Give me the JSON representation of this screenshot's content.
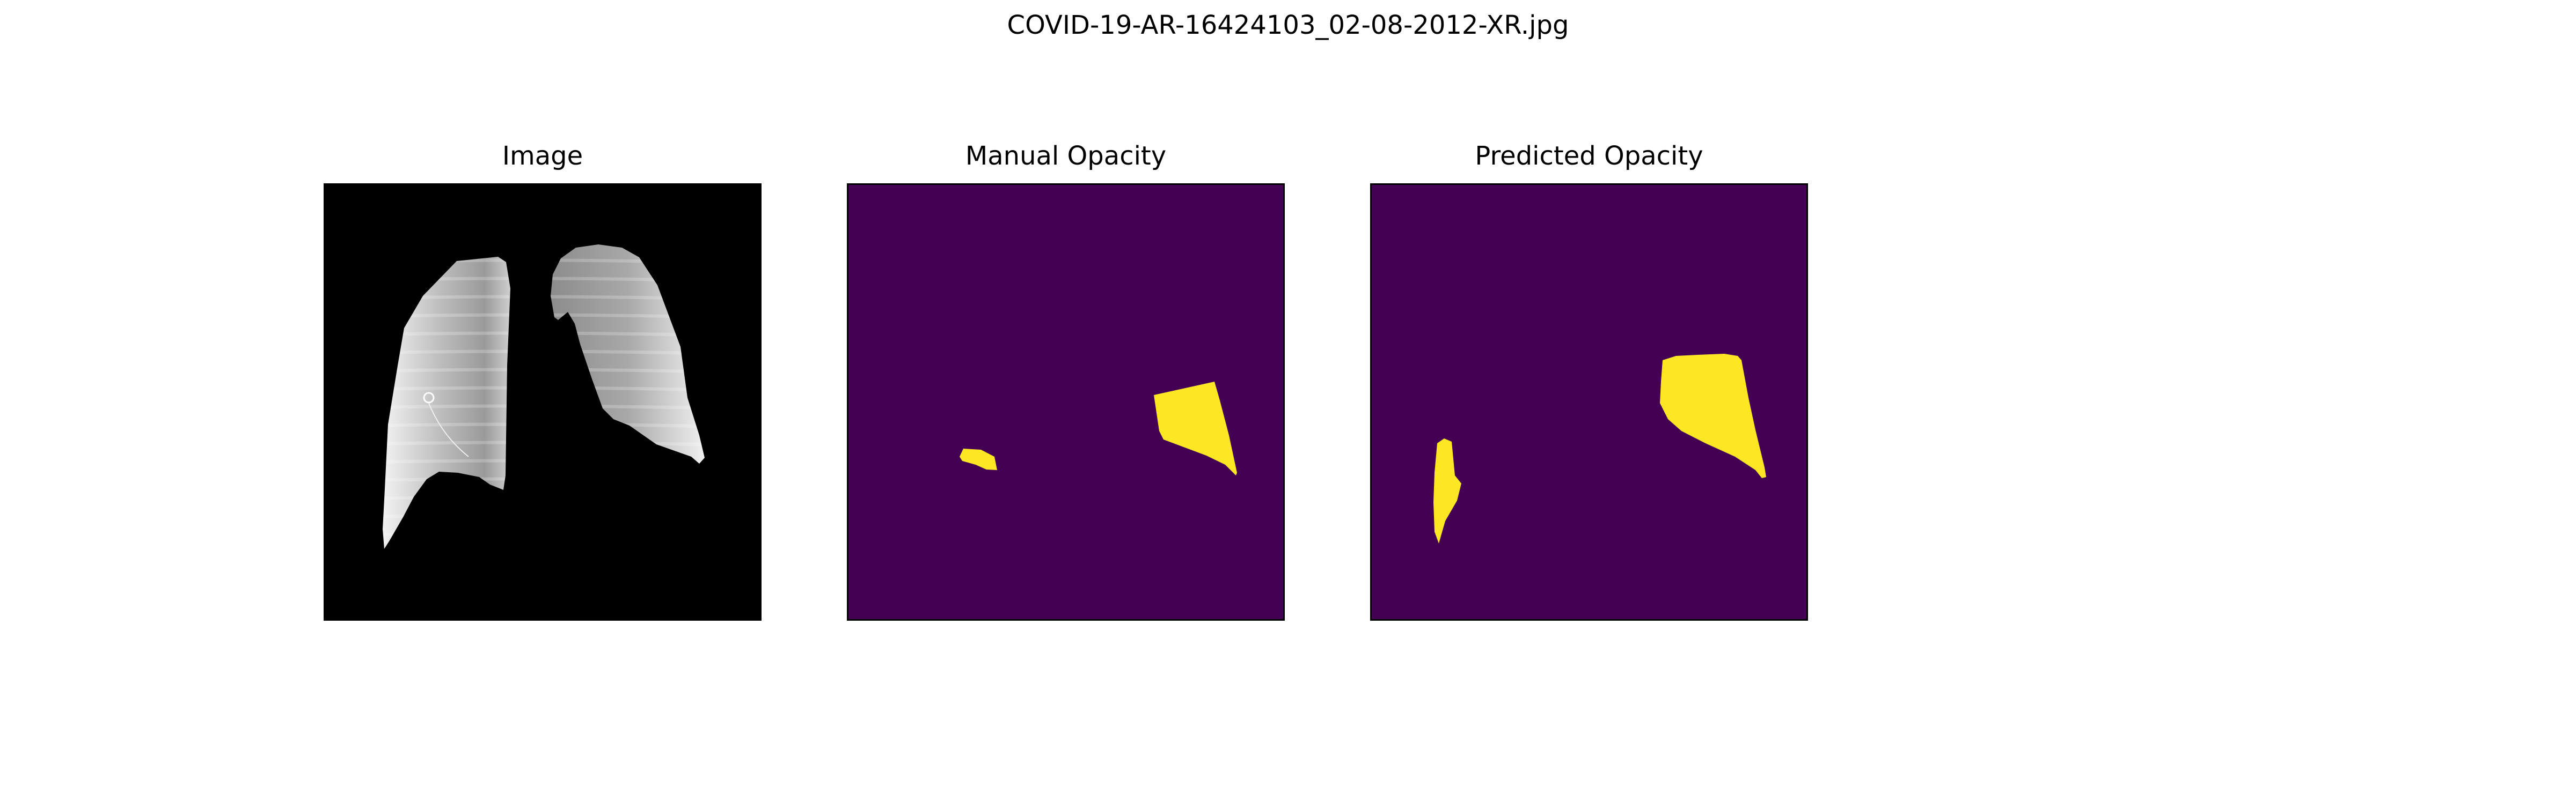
{
  "figure": {
    "title": "COVID-19-AR-16424103_02-08-2012-XR.jpg"
  },
  "panels": [
    {
      "title": "Image",
      "content": "lung-segmented-xray"
    },
    {
      "title": "Manual Opacity",
      "content": "opacity-mask"
    },
    {
      "title": "Predicted Opacity",
      "content": "opacity-mask"
    }
  ],
  "colors": {
    "mask_background": "#440154",
    "mask_foreground": "#fde725",
    "image_background": "#000000",
    "frame": "#000000"
  }
}
